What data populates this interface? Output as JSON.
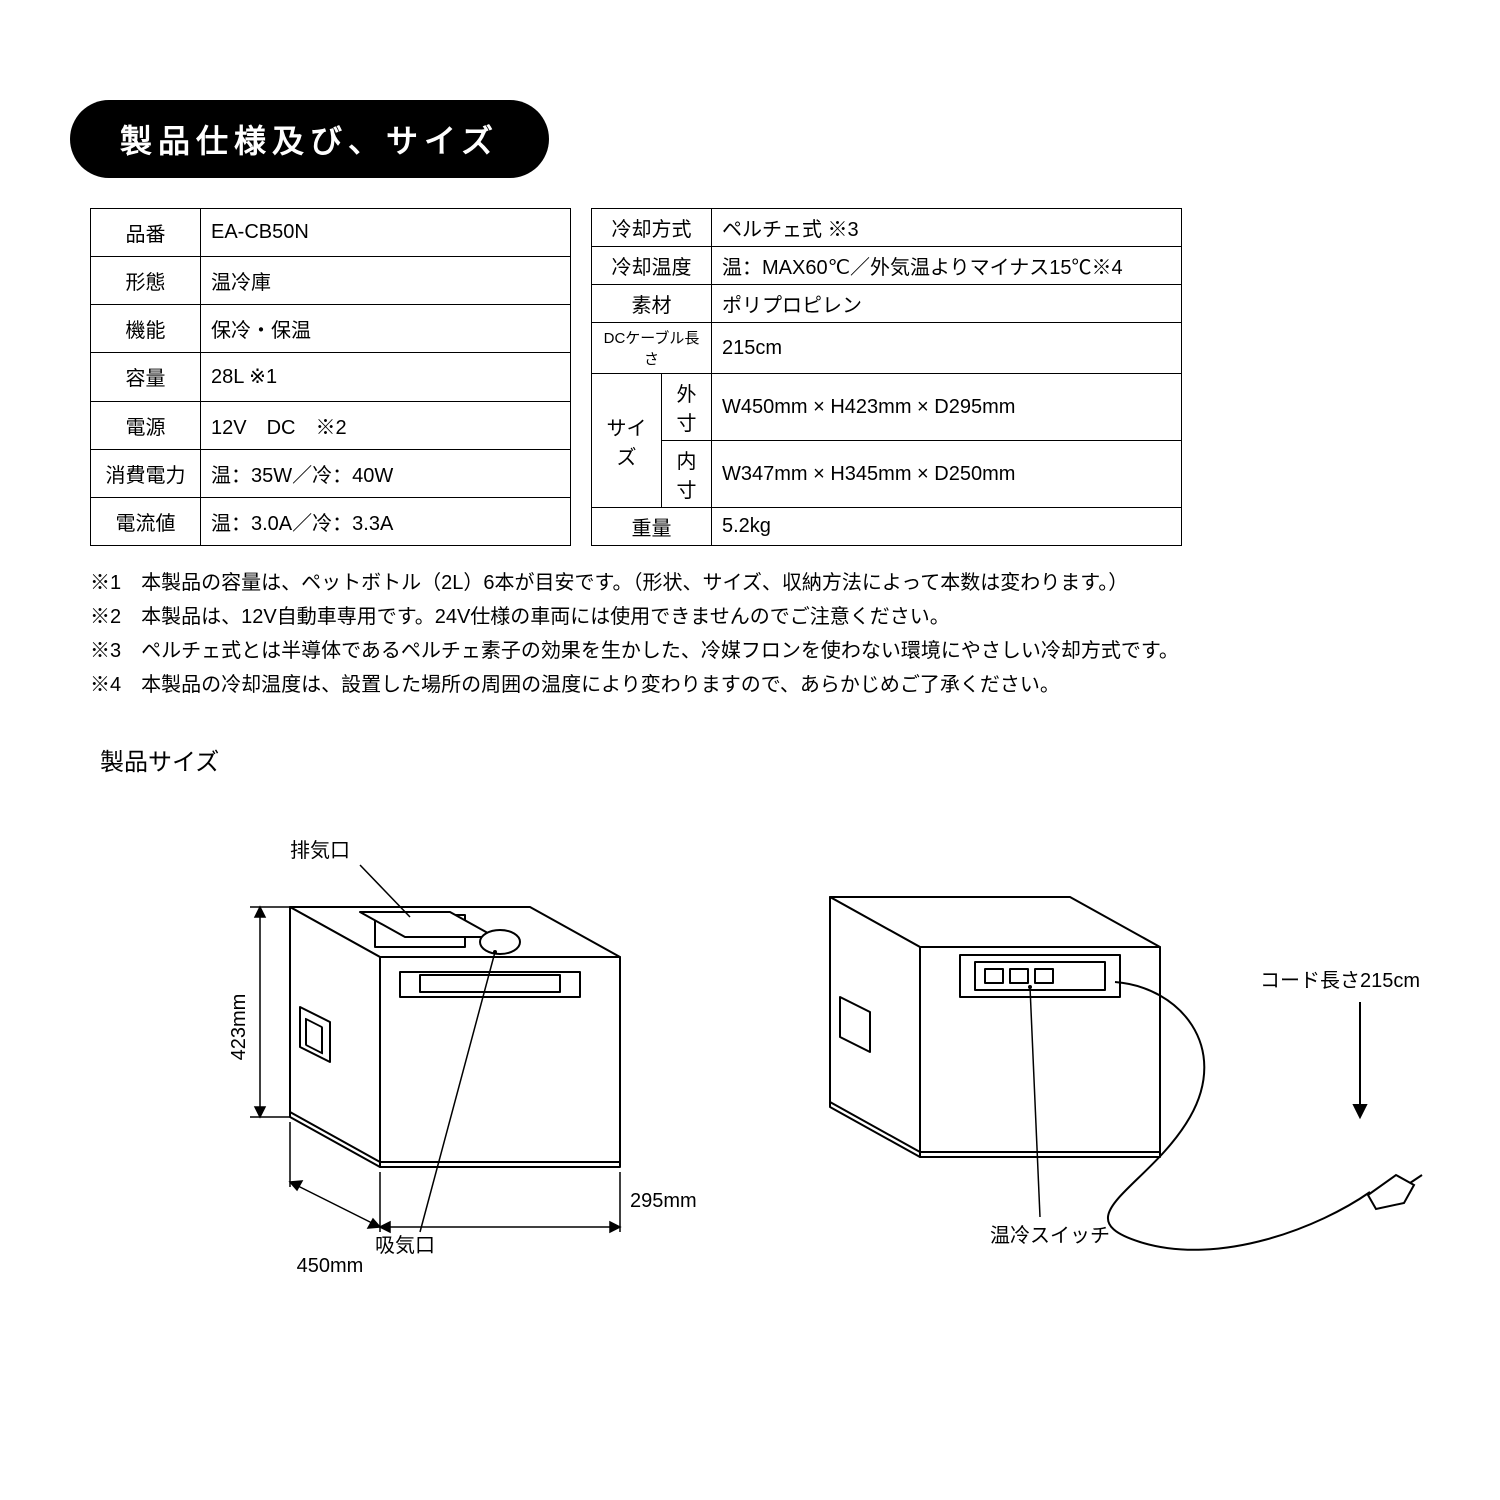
{
  "header": "製品仕様及び、サイズ",
  "left_table": {
    "cols": {
      "label_w": 110,
      "value_w": 370
    },
    "rows": [
      {
        "label": "品番",
        "value": "EA-CB50N"
      },
      {
        "label": "形態",
        "value": "温冷庫"
      },
      {
        "label": "機能",
        "value": "保冷・保温"
      },
      {
        "label": "容量",
        "value": "28L ※1"
      },
      {
        "label": "電源",
        "value": "12V　DC　※2"
      },
      {
        "label": "消費電力",
        "value": "温：35W／冷：40W"
      },
      {
        "label": "電流値",
        "value": "温：3.0A／冷：3.3A"
      }
    ]
  },
  "right_table": {
    "cols": {
      "label_w": 120,
      "sub_w": 50,
      "value_w": 470
    },
    "rows_top": [
      {
        "label": "冷却方式",
        "value": "ペルチェ式 ※3"
      },
      {
        "label": "冷却温度",
        "value": "温：MAX60℃／外気温よりマイナス15℃※4"
      },
      {
        "label": "素材",
        "value": "ポリプロピレン"
      },
      {
        "label": "DCケーブル長さ",
        "value": "215cm",
        "label_small": true
      }
    ],
    "size_label": "サイズ",
    "size_rows": [
      {
        "sub": "外寸",
        "value": "W450mm × H423mm × D295mm"
      },
      {
        "sub": "内寸",
        "value": "W347mm × H345mm × D250mm"
      }
    ],
    "weight": {
      "label": "重量",
      "value": "5.2kg"
    }
  },
  "notes": [
    "※1　本製品の容量は、ペットボトル（2L）6本が目安です。（形状、サイズ、収納方法によって本数は変わります。）",
    "※2　本製品は、12V自動車専用です。24V仕様の車両には使用できませんのでご注意ください。",
    "※3　ペルチェ式とは半導体であるペルチェ素子の効果を生かした、冷媒フロンを使わない環境にやさしい冷却方式です。",
    "※4　本製品の冷却温度は、設置した場所の周囲の温度により変わりますので、あらかじめご了承ください。"
  ],
  "size_title": "製品サイズ",
  "diagram1": {
    "exhaust_label": "排気口",
    "intake_label": "吸気口",
    "height_dim": "423mm",
    "width_dim": "450mm",
    "depth_dim": "295mm",
    "stroke": "#000000",
    "fill": "#ffffff"
  },
  "diagram2": {
    "switch_label": "温冷スイッチ",
    "cord_label": "コード長さ215cm",
    "stroke": "#000000",
    "fill": "#ffffff"
  }
}
